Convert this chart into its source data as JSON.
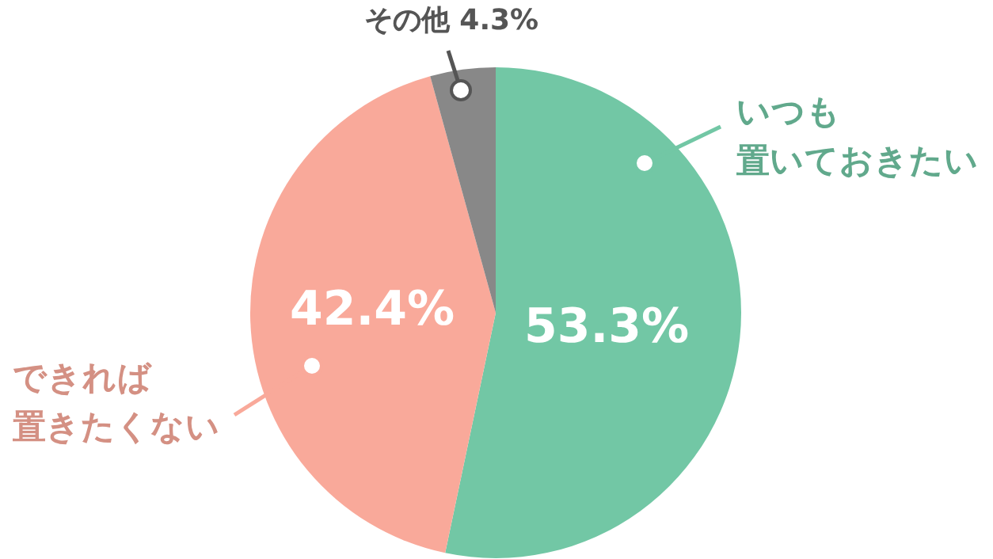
{
  "chart_data": {
    "type": "pie",
    "categories": [
      "いつも置いておきたい",
      "できれば置きたくない",
      "その他"
    ],
    "values": [
      53.3,
      42.4,
      4.3
    ],
    "colors": [
      "#72c7a5",
      "#f9a99a",
      "#888888"
    ],
    "value_labels": [
      "53.3%",
      "42.4%",
      "4.3%"
    ],
    "legend": false
  }
}
